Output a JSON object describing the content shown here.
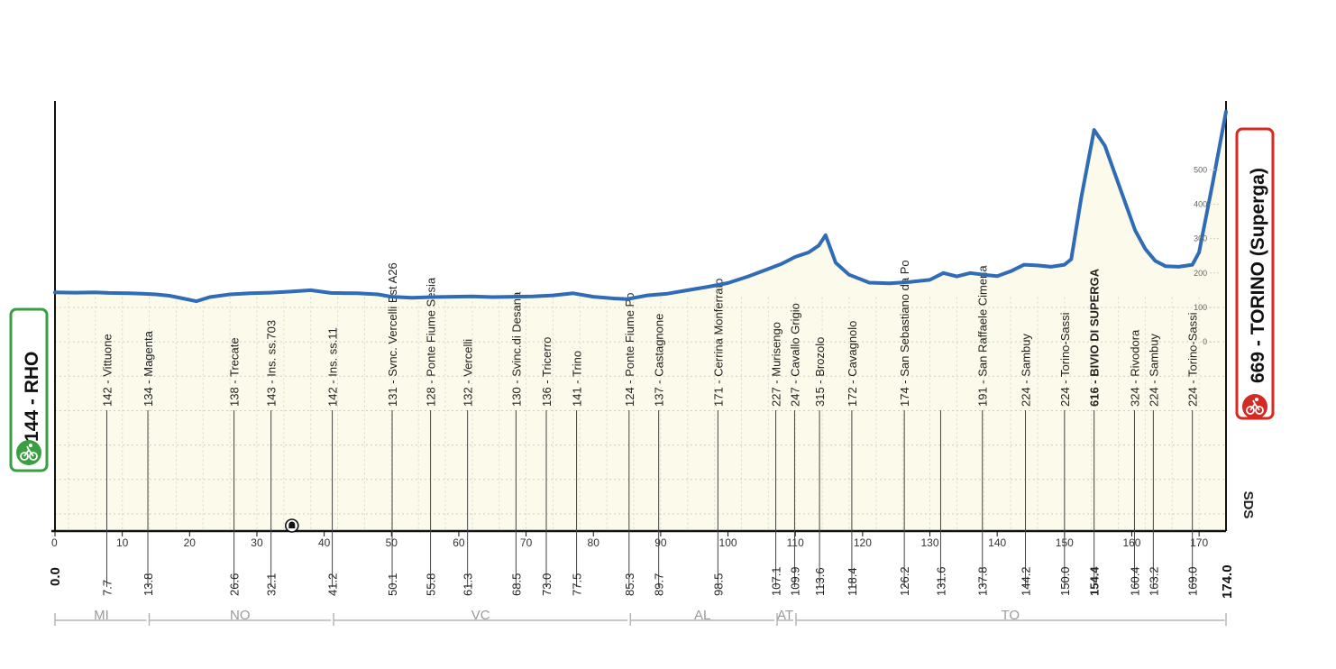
{
  "chart_data": {
    "type": "area",
    "start": {
      "label": "144 - RHO",
      "km": "0.0"
    },
    "finish": {
      "label": "669 - TORINO (Superga)",
      "km": "174.0"
    },
    "xlim": [
      0,
      174
    ],
    "ylim": [
      -550,
      700
    ],
    "x_ticks": [
      0,
      10,
      20,
      30,
      40,
      50,
      60,
      70,
      80,
      90,
      100,
      110,
      120,
      130,
      140,
      150,
      160,
      170
    ],
    "y_ticks": [
      0,
      100,
      200,
      300,
      400,
      500
    ],
    "y_tick_labels": [
      "0",
      "100",
      "200",
      "300",
      "400",
      "500"
    ],
    "waypoints": [
      {
        "km": "7.7",
        "label": "142 - Vittuone"
      },
      {
        "km": "13.8",
        "label": "134 - Magenta"
      },
      {
        "km": "26.6",
        "label": "138 - Trecate"
      },
      {
        "km": "32.1",
        "label": "143 - Ins. ss.703"
      },
      {
        "km": "41.2",
        "label": "142 - Ins. ss.11"
      },
      {
        "km": "50.1",
        "label": "131 - Svnc. Vercelli Est A26"
      },
      {
        "km": "55.8",
        "label": "128 - Ponte Fiume Sesia"
      },
      {
        "km": "61.3",
        "label": "132 - Vercelli"
      },
      {
        "km": "68.5",
        "label": "130 - Svinc.di Desana"
      },
      {
        "km": "73.0",
        "label": "136 - Tricerro"
      },
      {
        "km": "77.5",
        "label": "141 - Trino"
      },
      {
        "km": "85.3",
        "label": "124 - Ponte Fiume Po"
      },
      {
        "km": "89.7",
        "label": "137 - Castagnone"
      },
      {
        "km": "98.5",
        "label": "171 - Cerrina Monferrato"
      },
      {
        "km": "107.1",
        "label": "227 - Murisengo"
      },
      {
        "km": "109.9",
        "label": "247 - Cavallo Grigio"
      },
      {
        "km": "113.6",
        "label": "315 - Brozolo"
      },
      {
        "km": "118.4",
        "label": "172 - Cavagnolo"
      },
      {
        "km": "126.2",
        "label": "174 - San Sebastiano da Po"
      },
      {
        "km": "131.6",
        "label": ""
      },
      {
        "km": "137.8",
        "label": "191 - San Raffaele Cimena"
      },
      {
        "km": "144.2",
        "label": "224 - Sambuy"
      },
      {
        "km": "150.0",
        "label": "224 - Torino-Sassi"
      },
      {
        "km": "154.4",
        "label": "616 - BIVIO DI SUPERGA",
        "bold": true
      },
      {
        "km": "160.4",
        "label": "324 - Rivodora"
      },
      {
        "km": "163.2",
        "label": "224 - Sambuy"
      },
      {
        "km": "169.0",
        "label": "224 - Torino-Sassi"
      }
    ],
    "profile": {
      "x": [
        0,
        3,
        6,
        8,
        11,
        13,
        15,
        17,
        19,
        21,
        23,
        26,
        29,
        32,
        35,
        38,
        41,
        45,
        48,
        50,
        53,
        56,
        59,
        62,
        65,
        68,
        71,
        74,
        77,
        80,
        83,
        85,
        88,
        91,
        94,
        97,
        100,
        103,
        106,
        108,
        110,
        112,
        113.5,
        114.5,
        116,
        118,
        121,
        124,
        127,
        130,
        132,
        134,
        136,
        138,
        140,
        142,
        144,
        146,
        148,
        150,
        151,
        152.5,
        154.4,
        156,
        158,
        160.5,
        162,
        163.5,
        165,
        167,
        169,
        170,
        171,
        172,
        174
      ],
      "y": [
        144,
        143,
        144,
        142,
        141,
        140,
        138,
        134,
        126,
        118,
        130,
        138,
        141,
        143,
        146,
        150,
        142,
        141,
        138,
        131,
        128,
        130,
        131,
        132,
        130,
        131,
        132,
        135,
        141,
        131,
        126,
        124,
        135,
        140,
        150,
        160,
        171,
        190,
        212,
        227,
        247,
        260,
        280,
        310,
        230,
        195,
        172,
        170,
        174,
        180,
        200,
        190,
        200,
        195,
        191,
        205,
        224,
        222,
        218,
        224,
        240,
        420,
        616,
        570,
        460,
        324,
        270,
        235,
        220,
        218,
        224,
        260,
        360,
        460,
        669
      ]
    },
    "regions": [
      {
        "label": "MI",
        "from": 0,
        "to": 13.8
      },
      {
        "label": "NO",
        "from": 13.8,
        "to": 41.2
      },
      {
        "label": "VC",
        "from": 41.2,
        "to": 85.3
      },
      {
        "label": "AL",
        "from": 85.3,
        "to": 107.1
      },
      {
        "label": "AT",
        "from": 107.1,
        "to": 109.9
      },
      {
        "label": "TO",
        "from": 109.9,
        "to": 174
      }
    ],
    "markers": [
      {
        "type": "tunnel-icon",
        "km": 35.2
      }
    ],
    "brand_vertical": "SDS",
    "colors": {
      "profile_line": "#2f6cb5",
      "area_fill": "#fbfaeb",
      "start": "#3a9e43",
      "finish": "#d42a23",
      "region_line": "#b5b5b5"
    }
  }
}
